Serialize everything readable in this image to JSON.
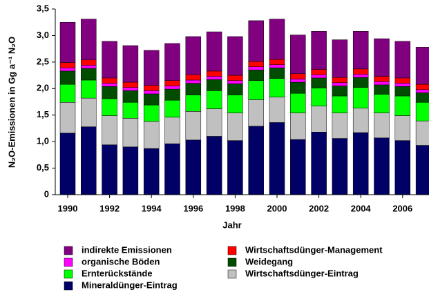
{
  "chart_data": {
    "type": "stacked_bar",
    "x_label": "Jahr",
    "y_label": "N₂O-Emissionen in Gg a⁻¹ N₂O",
    "categories": [
      "1990",
      null,
      "1992",
      null,
      "1994",
      null,
      "1996",
      null,
      "1998",
      null,
      "2000",
      null,
      "2002",
      null,
      "2004",
      null,
      "2006",
      null
    ],
    "ylim": [
      0,
      3.5
    ],
    "yticks": [
      0,
      {
        "value": 0.5,
        "label": "0,5"
      },
      {
        "value": 1,
        "label": "1,0"
      },
      {
        "value": 1.5,
        "label": "1,5"
      },
      {
        "value": 2,
        "label": "2,0"
      },
      {
        "value": 2.5,
        "label": "2,5"
      },
      {
        "value": 3,
        "label": "3,0"
      },
      {
        "value": 3.5,
        "label": "3,5"
      }
    ],
    "series": [
      {
        "name": "Mineraldünger-Eintrag",
        "color": "#000066",
        "values": [
          1.16,
          1.28,
          0.94,
          0.9,
          0.87,
          0.96,
          1.03,
          1.1,
          1.02,
          1.29,
          1.36,
          1.04,
          1.18,
          1.06,
          1.17,
          1.07,
          1.02,
          0.93
        ]
      },
      {
        "name": "Wirtschaftsdünger-Eintrag",
        "color": "#c0c0c0",
        "values": [
          0.58,
          0.54,
          0.55,
          0.54,
          0.51,
          0.5,
          0.54,
          0.52,
          0.52,
          0.5,
          0.48,
          0.5,
          0.49,
          0.48,
          0.46,
          0.47,
          0.47,
          0.46
        ]
      },
      {
        "name": "Ernterückstände",
        "color": "#00ff00",
        "values": [
          0.34,
          0.34,
          0.32,
          0.3,
          0.31,
          0.32,
          0.31,
          0.34,
          0.34,
          0.36,
          0.35,
          0.37,
          0.34,
          0.32,
          0.39,
          0.35,
          0.37,
          0.35
        ]
      },
      {
        "name": "Weidegang",
        "color": "#004d00",
        "values": [
          0.25,
          0.22,
          0.23,
          0.22,
          0.21,
          0.21,
          0.22,
          0.21,
          0.21,
          0.2,
          0.2,
          0.21,
          0.19,
          0.19,
          0.19,
          0.18,
          0.18,
          0.18
        ]
      },
      {
        "name": "organische Böden",
        "color": "#ff00ff",
        "values": [
          0.06,
          0.06,
          0.06,
          0.06,
          0.06,
          0.06,
          0.06,
          0.06,
          0.06,
          0.06,
          0.06,
          0.06,
          0.06,
          0.06,
          0.06,
          0.06,
          0.06,
          0.06
        ]
      },
      {
        "name": "Wirtschaftsdünger-Management",
        "color": "#ff0000",
        "values": [
          0.1,
          0.1,
          0.1,
          0.1,
          0.1,
          0.1,
          0.1,
          0.1,
          0.1,
          0.1,
          0.1,
          0.1,
          0.1,
          0.1,
          0.1,
          0.1,
          0.1,
          0.1
        ]
      },
      {
        "name": "indirekte Emissionen",
        "color": "#800080",
        "values": [
          0.76,
          0.77,
          0.69,
          0.69,
          0.66,
          0.7,
          0.72,
          0.74,
          0.73,
          0.77,
          0.76,
          0.73,
          0.72,
          0.71,
          0.71,
          0.71,
          0.69,
          0.7
        ]
      }
    ]
  }
}
